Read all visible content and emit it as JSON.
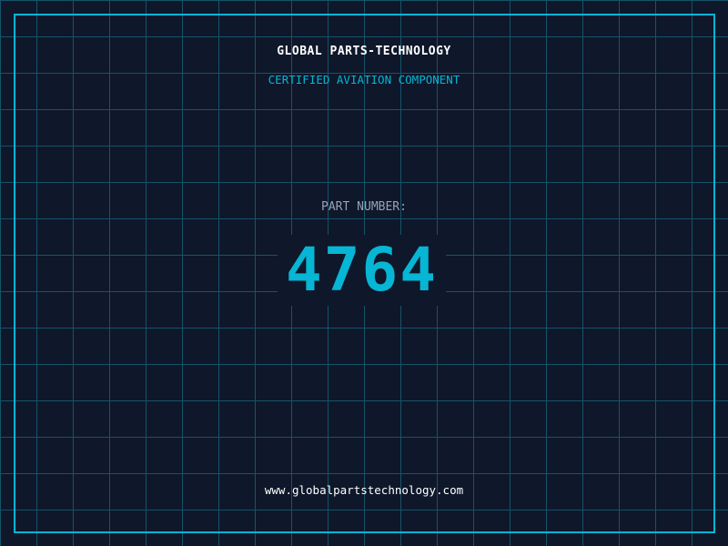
{
  "header": {
    "title": "GLOBAL PARTS-TECHNOLOGY",
    "subtitle": "CERTIFIED AVIATION COMPONENT"
  },
  "part": {
    "label": "PART NUMBER:",
    "number": "4764"
  },
  "footer": {
    "url": "www.globalpartstechnology.com"
  },
  "colors": {
    "background": "#0f172a",
    "accent": "#06b6d4",
    "grid": "#155e75",
    "label": "#94a3b8"
  }
}
